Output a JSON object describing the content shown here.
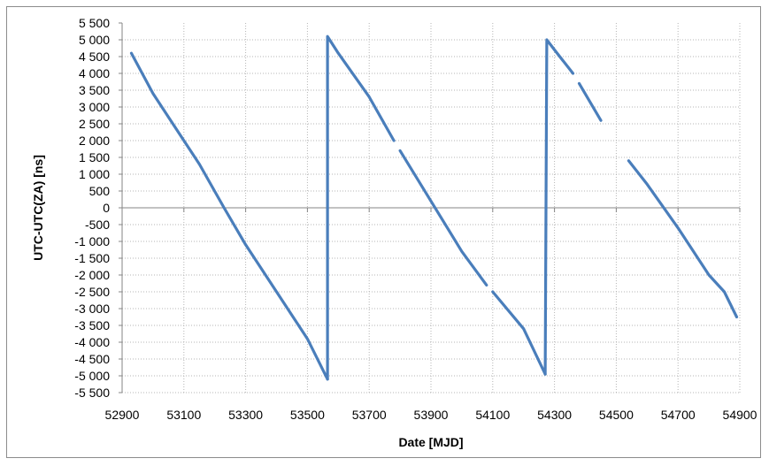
{
  "chart_data": {
    "type": "line",
    "title": "",
    "xlabel": "Date [MJD]",
    "ylabel": "UTC-UTC(ZA) [ns]",
    "xlim": [
      52900,
      54900
    ],
    "ylim": [
      -5500,
      5500
    ],
    "x_ticks": [
      52900,
      53100,
      53300,
      53500,
      53700,
      53900,
      54100,
      54300,
      54500,
      54700,
      54900
    ],
    "x_tick_labels": [
      "52900",
      "53100",
      "53300",
      "53500",
      "53700",
      "53900",
      "54100",
      "54300",
      "54500",
      "54700",
      "54900"
    ],
    "y_ticks": [
      5500,
      5000,
      4500,
      4000,
      3500,
      3000,
      2500,
      2000,
      1500,
      1000,
      500,
      0,
      -500,
      -1000,
      -1500,
      -2000,
      -2500,
      -3000,
      -3500,
      -4000,
      -4500,
      -5000,
      -5500
    ],
    "y_tick_labels": [
      "5 500",
      "5 000",
      "4 500",
      "4 000",
      "3 500",
      "3 000",
      "2 500",
      "2 000",
      "1 500",
      "1 000",
      "500",
      "0",
      "-500",
      "-1 000",
      "-1 500",
      "-2 000",
      "-2 500",
      "-3 000",
      "-3 500",
      "-4 000",
      "-4 500",
      "-5 000",
      "-5 500"
    ],
    "grid": true,
    "legend": "none",
    "line_color": "#4a7ebb",
    "series": [
      {
        "segments": [
          [
            [
              52930,
              4600
            ],
            [
              53000,
              3400
            ],
            [
              53100,
              2000
            ],
            [
              53150,
              1300
            ],
            [
              53230,
              0
            ],
            [
              53300,
              -1100
            ],
            [
              53400,
              -2500
            ],
            [
              53500,
              -3900
            ],
            [
              53565,
              -5100
            ]
          ],
          [
            [
              53565,
              -5100
            ],
            [
              53565,
              5100
            ],
            [
              53600,
              4600
            ],
            [
              53700,
              3300
            ],
            [
              53780,
              2000
            ]
          ],
          [
            [
              53800,
              1700
            ],
            [
              53900,
              200
            ],
            [
              54000,
              -1300
            ],
            [
              54080,
              -2300
            ]
          ],
          [
            [
              54100,
              -2500
            ],
            [
              54200,
              -3600
            ],
            [
              54270,
              -4950
            ]
          ],
          [
            [
              54270,
              -4950
            ],
            [
              54275,
              5000
            ],
            [
              54300,
              4700
            ],
            [
              54360,
              4000
            ]
          ],
          [
            [
              54380,
              3700
            ],
            [
              54450,
              2600
            ]
          ],
          [
            [
              54540,
              1400
            ],
            [
              54600,
              700
            ],
            [
              54700,
              -600
            ],
            [
              54800,
              -2000
            ],
            [
              54850,
              -2500
            ],
            [
              54890,
              -3250
            ]
          ]
        ]
      }
    ]
  }
}
